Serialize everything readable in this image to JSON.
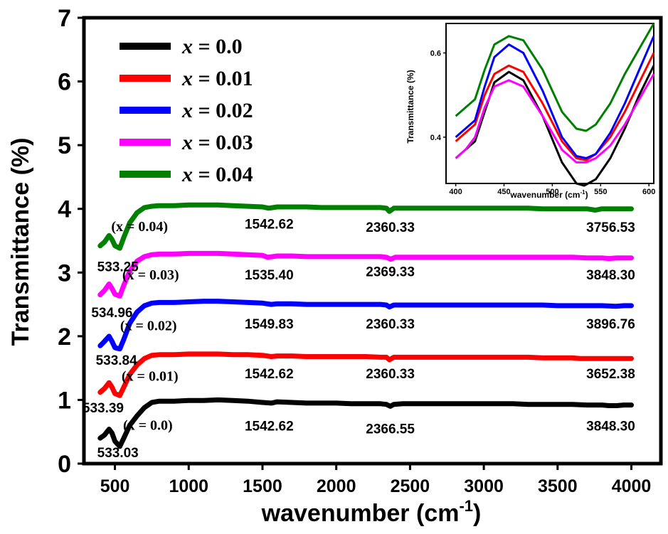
{
  "chart_data": [
    {
      "type": "line",
      "xlabel": "wavenumber (cm",
      "xlabel_sup": "-1",
      "xlabel_end": ")",
      "ylabel": "Transmittance (%)",
      "xlim": [
        290,
        4200
      ],
      "ylim": [
        0,
        7
      ],
      "xticks": [
        500,
        1000,
        1500,
        2000,
        2500,
        3000,
        3500,
        4000
      ],
      "yticks": [
        0,
        1,
        2,
        3,
        4,
        5,
        6,
        7
      ],
      "legend_position": "top-left",
      "series": [
        {
          "name": "x = 0.0",
          "color": "#000000",
          "base": 0.93,
          "bandlabel": "(x = 0.0)",
          "labx": 1230,
          "laby": 0.6,
          "x": [
            400,
            430,
            460,
            480,
            500,
            533,
            560,
            600,
            650,
            700,
            750,
            800,
            900,
            1000,
            1100,
            1200,
            1300,
            1400,
            1500,
            1560,
            1600,
            1700,
            1800,
            1900,
            2000,
            2100,
            2200,
            2300,
            2340,
            2366,
            2390,
            2450,
            2500,
            2600,
            2700,
            2800,
            2900,
            3000,
            3100,
            3200,
            3300,
            3400,
            3500,
            3600,
            3700,
            3800,
            3848,
            3900,
            3950,
            4000
          ],
          "y": [
            0.4,
            0.45,
            0.54,
            0.48,
            0.35,
            0.27,
            0.4,
            0.6,
            0.75,
            0.88,
            0.96,
            0.98,
            0.98,
            0.99,
            0.99,
            1.0,
            0.99,
            0.98,
            0.96,
            0.95,
            0.97,
            0.96,
            0.95,
            0.95,
            0.95,
            0.94,
            0.94,
            0.94,
            0.93,
            0.9,
            0.93,
            0.94,
            0.94,
            0.94,
            0.94,
            0.94,
            0.94,
            0.94,
            0.94,
            0.94,
            0.93,
            0.93,
            0.93,
            0.93,
            0.92,
            0.92,
            0.91,
            0.91,
            0.92,
            0.92
          ],
          "peaks": [
            {
              "label": "533.03",
              "x": 520,
              "y": 0.18
            },
            {
              "label": "1542.62",
              "x": 1545,
              "y": 0.6
            },
            {
              "label": "2366.55",
              "x": 2366,
              "y": 0.55
            },
            {
              "label": "3848.30",
              "x": 3860,
              "y": 0.6
            }
          ]
        },
        {
          "name": "x = 0.01",
          "color": "#ff0000",
          "base": 1.67,
          "bandlabel": "(x = 0.01)",
          "labx": 1220,
          "laby": 1.37,
          "x": [
            400,
            430,
            460,
            480,
            500,
            533,
            560,
            600,
            650,
            700,
            750,
            800,
            900,
            1000,
            1100,
            1200,
            1300,
            1400,
            1500,
            1560,
            1600,
            1700,
            1800,
            1900,
            2000,
            2100,
            2200,
            2300,
            2340,
            2360,
            2390,
            2450,
            2500,
            2600,
            2700,
            2800,
            2900,
            3000,
            3100,
            3200,
            3300,
            3400,
            3500,
            3600,
            3652,
            3700,
            3800,
            3900,
            3950,
            4000
          ],
          "y": [
            1.12,
            1.18,
            1.27,
            1.2,
            1.1,
            1.07,
            1.2,
            1.4,
            1.55,
            1.65,
            1.7,
            1.71,
            1.71,
            1.72,
            1.72,
            1.72,
            1.71,
            1.71,
            1.7,
            1.68,
            1.69,
            1.69,
            1.68,
            1.68,
            1.68,
            1.68,
            1.68,
            1.67,
            1.67,
            1.63,
            1.67,
            1.67,
            1.67,
            1.67,
            1.67,
            1.67,
            1.67,
            1.67,
            1.67,
            1.67,
            1.67,
            1.66,
            1.66,
            1.66,
            1.65,
            1.65,
            1.65,
            1.65,
            1.65,
            1.65
          ],
          "peaks": [
            {
              "label": "533.39",
              "x": 420,
              "y": 0.88
            },
            {
              "label": "1542.62",
              "x": 1545,
              "y": 1.42
            },
            {
              "label": "2360.33",
              "x": 2366,
              "y": 1.42
            },
            {
              "label": "3652.38",
              "x": 3860,
              "y": 1.42
            }
          ]
        },
        {
          "name": "x = 0.02",
          "color": "#0000ff",
          "base": 2.49,
          "bandlabel": "(x = 0.02)",
          "labx": 1210,
          "laby": 2.16,
          "x": [
            400,
            430,
            460,
            480,
            500,
            533,
            560,
            600,
            650,
            700,
            750,
            800,
            900,
            1000,
            1100,
            1200,
            1300,
            1400,
            1500,
            1560,
            1600,
            1700,
            1800,
            1900,
            2000,
            2100,
            2200,
            2300,
            2340,
            2360,
            2390,
            2450,
            2500,
            2600,
            2700,
            2800,
            2900,
            3000,
            3100,
            3200,
            3300,
            3400,
            3500,
            3600,
            3700,
            3800,
            3896,
            3950,
            4000
          ],
          "y": [
            1.85,
            1.92,
            2.0,
            1.92,
            1.82,
            1.8,
            1.95,
            2.2,
            2.38,
            2.48,
            2.52,
            2.53,
            2.53,
            2.54,
            2.55,
            2.55,
            2.54,
            2.53,
            2.52,
            2.5,
            2.51,
            2.51,
            2.5,
            2.5,
            2.5,
            2.5,
            2.5,
            2.5,
            2.49,
            2.46,
            2.49,
            2.49,
            2.49,
            2.49,
            2.49,
            2.49,
            2.49,
            2.49,
            2.49,
            2.49,
            2.49,
            2.49,
            2.48,
            2.48,
            2.48,
            2.48,
            2.47,
            2.48,
            2.48
          ],
          "peaks": [
            {
              "label": "533.84",
              "x": 510,
              "y": 1.63
            },
            {
              "label": "1549.83",
              "x": 1545,
              "y": 2.2
            },
            {
              "label": "2360.33",
              "x": 2366,
              "y": 2.2
            },
            {
              "label": "3896.76",
              "x": 3860,
              "y": 2.2
            }
          ]
        },
        {
          "name": "x = 0.03",
          "color": "#ff00ff",
          "base": 3.25,
          "bandlabel": "(x = 0.03)",
          "labx": 1225,
          "laby": 2.96,
          "x": [
            400,
            430,
            460,
            480,
            500,
            533,
            560,
            600,
            650,
            700,
            750,
            800,
            900,
            1000,
            1100,
            1200,
            1300,
            1400,
            1500,
            1535,
            1600,
            1700,
            1800,
            1900,
            2000,
            2100,
            2200,
            2300,
            2340,
            2369,
            2400,
            2450,
            2500,
            2600,
            2700,
            2800,
            2900,
            3000,
            3100,
            3200,
            3300,
            3400,
            3500,
            3600,
            3700,
            3800,
            3848,
            3900,
            3950,
            4000
          ],
          "y": [
            2.65,
            2.72,
            2.82,
            2.75,
            2.66,
            2.63,
            2.8,
            3.02,
            3.18,
            3.25,
            3.28,
            3.29,
            3.29,
            3.3,
            3.3,
            3.3,
            3.29,
            3.28,
            3.27,
            3.24,
            3.26,
            3.26,
            3.25,
            3.25,
            3.25,
            3.25,
            3.25,
            3.25,
            3.24,
            3.21,
            3.24,
            3.24,
            3.24,
            3.24,
            3.24,
            3.24,
            3.24,
            3.24,
            3.24,
            3.24,
            3.24,
            3.24,
            3.24,
            3.24,
            3.23,
            3.23,
            3.22,
            3.23,
            3.23,
            3.23
          ],
          "peaks": [
            {
              "label": "534.96",
              "x": 480,
              "y": 2.38
            },
            {
              "label": "1535.40",
              "x": 1545,
              "y": 2.97
            },
            {
              "label": "2369.33",
              "x": 2366,
              "y": 3.02
            },
            {
              "label": "3848.30",
              "x": 3860,
              "y": 2.97
            }
          ]
        },
        {
          "name": "x = 0.04",
          "color": "#008000",
          "base": 4.02,
          "bandlabel": "(x = 0.04)",
          "labx": 1150,
          "laby": 3.72,
          "x": [
            400,
            430,
            460,
            480,
            500,
            533,
            560,
            600,
            650,
            700,
            750,
            800,
            900,
            1000,
            1100,
            1200,
            1300,
            1400,
            1500,
            1542,
            1600,
            1700,
            1800,
            1900,
            2000,
            2100,
            2200,
            2300,
            2340,
            2360,
            2390,
            2450,
            2500,
            2600,
            2700,
            2800,
            2900,
            3000,
            3100,
            3200,
            3300,
            3400,
            3500,
            3600,
            3700,
            3756,
            3800,
            3900,
            3950,
            4000
          ],
          "y": [
            3.42,
            3.48,
            3.58,
            3.52,
            3.42,
            3.38,
            3.55,
            3.78,
            3.94,
            4.02,
            4.04,
            4.05,
            4.05,
            4.06,
            4.06,
            4.06,
            4.05,
            4.04,
            4.03,
            4.01,
            4.03,
            4.03,
            4.03,
            4.02,
            4.02,
            4.02,
            4.02,
            4.02,
            4.01,
            3.96,
            4.01,
            4.01,
            4.01,
            4.01,
            4.01,
            4.01,
            4.01,
            4.01,
            4.01,
            4.01,
            4.01,
            4.0,
            4.0,
            4.0,
            4.0,
            3.98,
            4.0,
            4.0,
            4.0,
            4.0
          ],
          "peaks": [
            {
              "label": "533.25",
              "x": 520,
              "y": 3.1
            },
            {
              "label": "1542.62",
              "x": 1545,
              "y": 3.77
            },
            {
              "label": "2360.33",
              "x": 2366,
              "y": 3.72
            },
            {
              "label": "3756.53",
              "x": 3860,
              "y": 3.72
            }
          ]
        }
      ]
    },
    {
      "type": "line",
      "xlabel": "wavenumber (cm",
      "xlabel_sup": "-1",
      "xlabel_end": ")",
      "ylabel": "Transmittance (%)",
      "xlim": [
        390,
        605
      ],
      "ylim": [
        0.29,
        0.67
      ],
      "xticks": [
        400,
        450,
        500,
        550,
        600
      ],
      "yticks": [
        0.4,
        0.6
      ],
      "series": [
        {
          "color": "#000000",
          "x": [
            400,
            410,
            420,
            430,
            440,
            455,
            470,
            490,
            510,
            525,
            533,
            545,
            560,
            575,
            590,
            605
          ],
          "y": [
            0.35,
            0.37,
            0.39,
            0.46,
            0.53,
            0.555,
            0.535,
            0.45,
            0.34,
            0.29,
            0.285,
            0.3,
            0.35,
            0.42,
            0.5,
            0.57
          ]
        },
        {
          "color": "#ff0000",
          "x": [
            400,
            410,
            420,
            430,
            440,
            455,
            470,
            490,
            510,
            525,
            535,
            545,
            560,
            575,
            590,
            605
          ],
          "y": [
            0.39,
            0.41,
            0.43,
            0.5,
            0.55,
            0.57,
            0.555,
            0.48,
            0.39,
            0.35,
            0.345,
            0.36,
            0.4,
            0.46,
            0.53,
            0.6
          ]
        },
        {
          "color": "#0000ff",
          "x": [
            400,
            410,
            420,
            430,
            440,
            455,
            470,
            490,
            510,
            525,
            535,
            545,
            560,
            575,
            590,
            605
          ],
          "y": [
            0.4,
            0.42,
            0.44,
            0.52,
            0.59,
            0.62,
            0.6,
            0.51,
            0.4,
            0.355,
            0.35,
            0.36,
            0.41,
            0.48,
            0.56,
            0.64
          ]
        },
        {
          "color": "#ff00ff",
          "x": [
            400,
            410,
            420,
            430,
            440,
            455,
            470,
            490,
            510,
            525,
            535,
            545,
            560,
            575,
            590,
            605
          ],
          "y": [
            0.35,
            0.37,
            0.4,
            0.47,
            0.52,
            0.535,
            0.52,
            0.45,
            0.37,
            0.34,
            0.34,
            0.35,
            0.38,
            0.43,
            0.49,
            0.55
          ]
        },
        {
          "color": "#008000",
          "x": [
            400,
            410,
            420,
            430,
            440,
            455,
            470,
            490,
            510,
            525,
            535,
            545,
            560,
            575,
            590,
            605
          ],
          "y": [
            0.45,
            0.47,
            0.49,
            0.56,
            0.62,
            0.64,
            0.63,
            0.56,
            0.46,
            0.42,
            0.415,
            0.43,
            0.48,
            0.55,
            0.61,
            0.67
          ]
        }
      ]
    }
  ]
}
